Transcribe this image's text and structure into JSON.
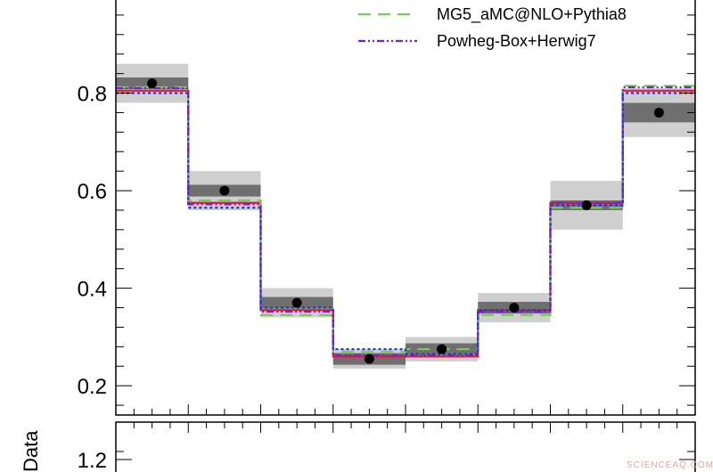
{
  "chart_data": {
    "type": "step",
    "bins": 8,
    "ylim": [
      0.14,
      1.0
    ],
    "yticks": [
      0.2,
      0.4,
      0.6,
      0.8
    ],
    "ytick_labels": [
      "0.2",
      "0.4",
      "0.6",
      "0.8"
    ],
    "data_points": [
      0.82,
      0.6,
      0.37,
      0.255,
      0.275,
      0.36,
      0.57,
      0.76
    ],
    "stat_unc": [
      0.012,
      0.012,
      0.012,
      0.012,
      0.012,
      0.012,
      0.01,
      0.02
    ],
    "total_unc": [
      0.04,
      0.04,
      0.03,
      0.02,
      0.025,
      0.03,
      0.05,
      0.05
    ],
    "series": [
      {
        "name": "",
        "color": "#e8192c",
        "dash": "",
        "values": [
          0.805,
          0.575,
          0.355,
          0.26,
          0.26,
          0.355,
          0.575,
          0.805
        ]
      },
      {
        "name": "MG5_aMC@NLO+Pythia8",
        "color": "#77cc55",
        "dash": "14,8",
        "values": [
          0.812,
          0.58,
          0.345,
          0.27,
          0.275,
          0.345,
          0.565,
          0.815
        ]
      },
      {
        "name": "Powheg-Box+Herwig7",
        "color": "#7a1fd0",
        "dash": "8,3,2,3,2,3",
        "values": [
          0.81,
          0.572,
          0.352,
          0.262,
          0.262,
          0.352,
          0.575,
          0.812
        ]
      },
      {
        "name": "",
        "color": "#1a3ad0",
        "dash": "3,3",
        "values": [
          0.8,
          0.565,
          0.36,
          0.275,
          0.265,
          0.355,
          0.57,
          0.8
        ]
      }
    ],
    "ratio_panel": {
      "ylabel": "Data",
      "tick_label": "1.2"
    }
  },
  "legend": {
    "entries": [
      "MG5_aMC@NLO+Pythia8",
      "Powheg-Box+Herwig7"
    ]
  },
  "watermark": "SCIENCEAQ.COM"
}
